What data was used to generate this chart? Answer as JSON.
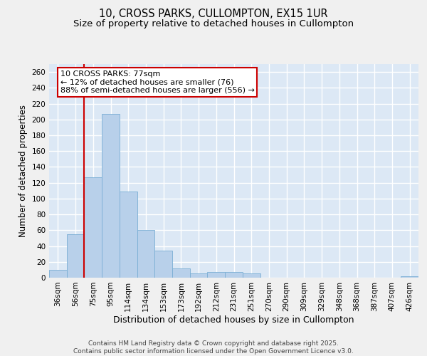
{
  "title_line1": "10, CROSS PARKS, CULLOMPTON, EX15 1UR",
  "title_line2": "Size of property relative to detached houses in Cullompton",
  "xlabel": "Distribution of detached houses by size in Cullompton",
  "ylabel": "Number of detached properties",
  "categories": [
    "36sqm",
    "56sqm",
    "75sqm",
    "95sqm",
    "114sqm",
    "134sqm",
    "153sqm",
    "173sqm",
    "192sqm",
    "212sqm",
    "231sqm",
    "251sqm",
    "270sqm",
    "290sqm",
    "309sqm",
    "329sqm",
    "348sqm",
    "368sqm",
    "387sqm",
    "407sqm",
    "426sqm"
  ],
  "values": [
    10,
    55,
    127,
    207,
    109,
    60,
    34,
    12,
    5,
    7,
    7,
    5,
    0,
    0,
    0,
    0,
    0,
    0,
    0,
    0,
    2
  ],
  "bar_color": "#b8d0ea",
  "bar_edgecolor": "#7aaed4",
  "background_color": "#dce8f5",
  "grid_color": "#ffffff",
  "vline_color": "#cc0000",
  "annotation_text": "10 CROSS PARKS: 77sqm\n← 12% of detached houses are smaller (76)\n88% of semi-detached houses are larger (556) →",
  "annotation_box_facecolor": "#ffffff",
  "annotation_box_edgecolor": "#cc0000",
  "ylim": [
    0,
    270
  ],
  "yticks": [
    0,
    20,
    40,
    60,
    80,
    100,
    120,
    140,
    160,
    180,
    200,
    220,
    240,
    260
  ],
  "footer_line1": "Contains HM Land Registry data © Crown copyright and database right 2025.",
  "footer_line2": "Contains public sector information licensed under the Open Government Licence v3.0.",
  "title_fontsize": 10.5,
  "subtitle_fontsize": 9.5,
  "xlabel_fontsize": 9,
  "ylabel_fontsize": 8.5,
  "tick_fontsize": 7.5,
  "annotation_fontsize": 8,
  "footer_fontsize": 6.5,
  "fig_facecolor": "#f0f0f0",
  "vline_index": 1.5
}
